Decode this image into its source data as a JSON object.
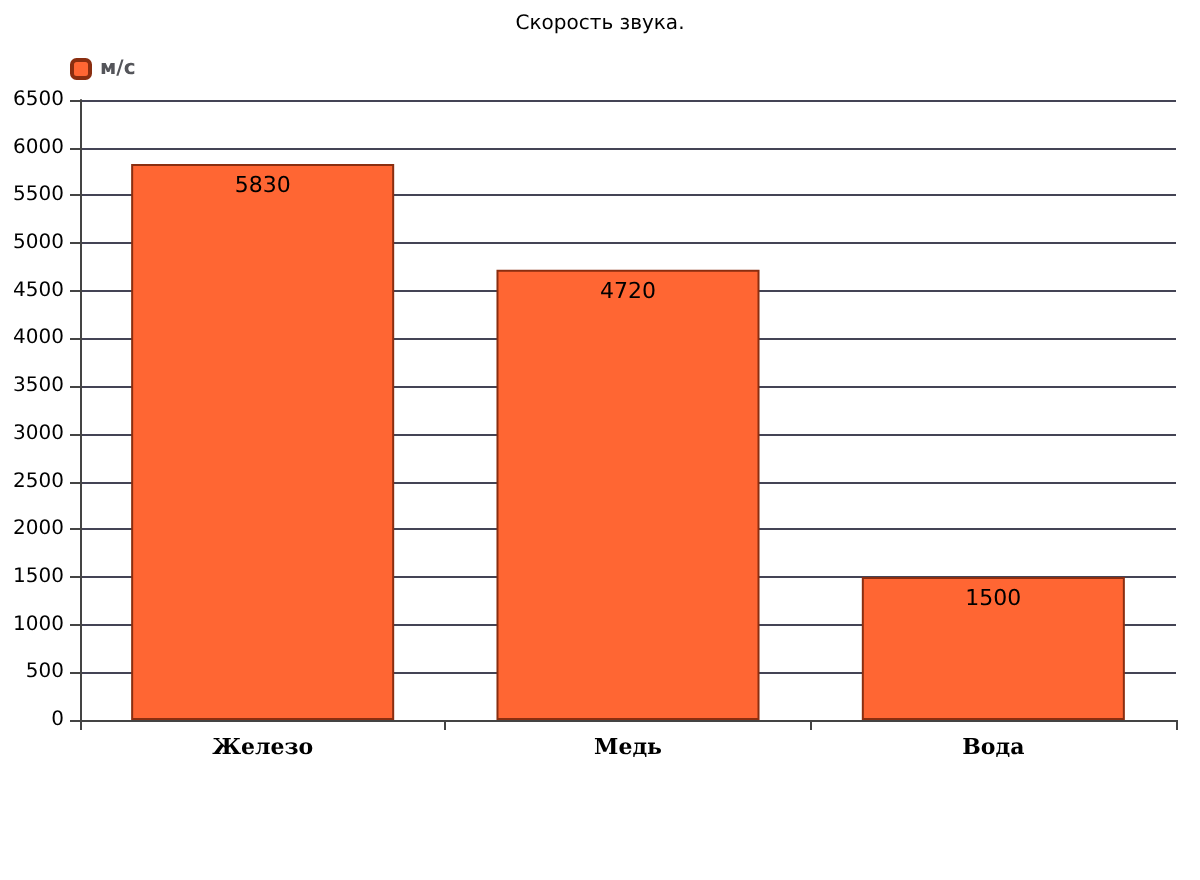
{
  "chart_data": {
    "type": "bar",
    "title": "Скорость звука.",
    "categories": [
      "Железо",
      "Медь",
      "Вода"
    ],
    "series": [
      {
        "name": "м/с",
        "color": "#ff6633",
        "values": [
          5830,
          4720,
          1500
        ]
      }
    ],
    "ylim": [
      0,
      6500
    ],
    "yticks": [
      0,
      500,
      1000,
      1500,
      2000,
      2500,
      3000,
      3500,
      4000,
      4500,
      5000,
      5500,
      6000,
      6500
    ],
    "grid": "y",
    "legend": "top left",
    "data_labels": true
  }
}
